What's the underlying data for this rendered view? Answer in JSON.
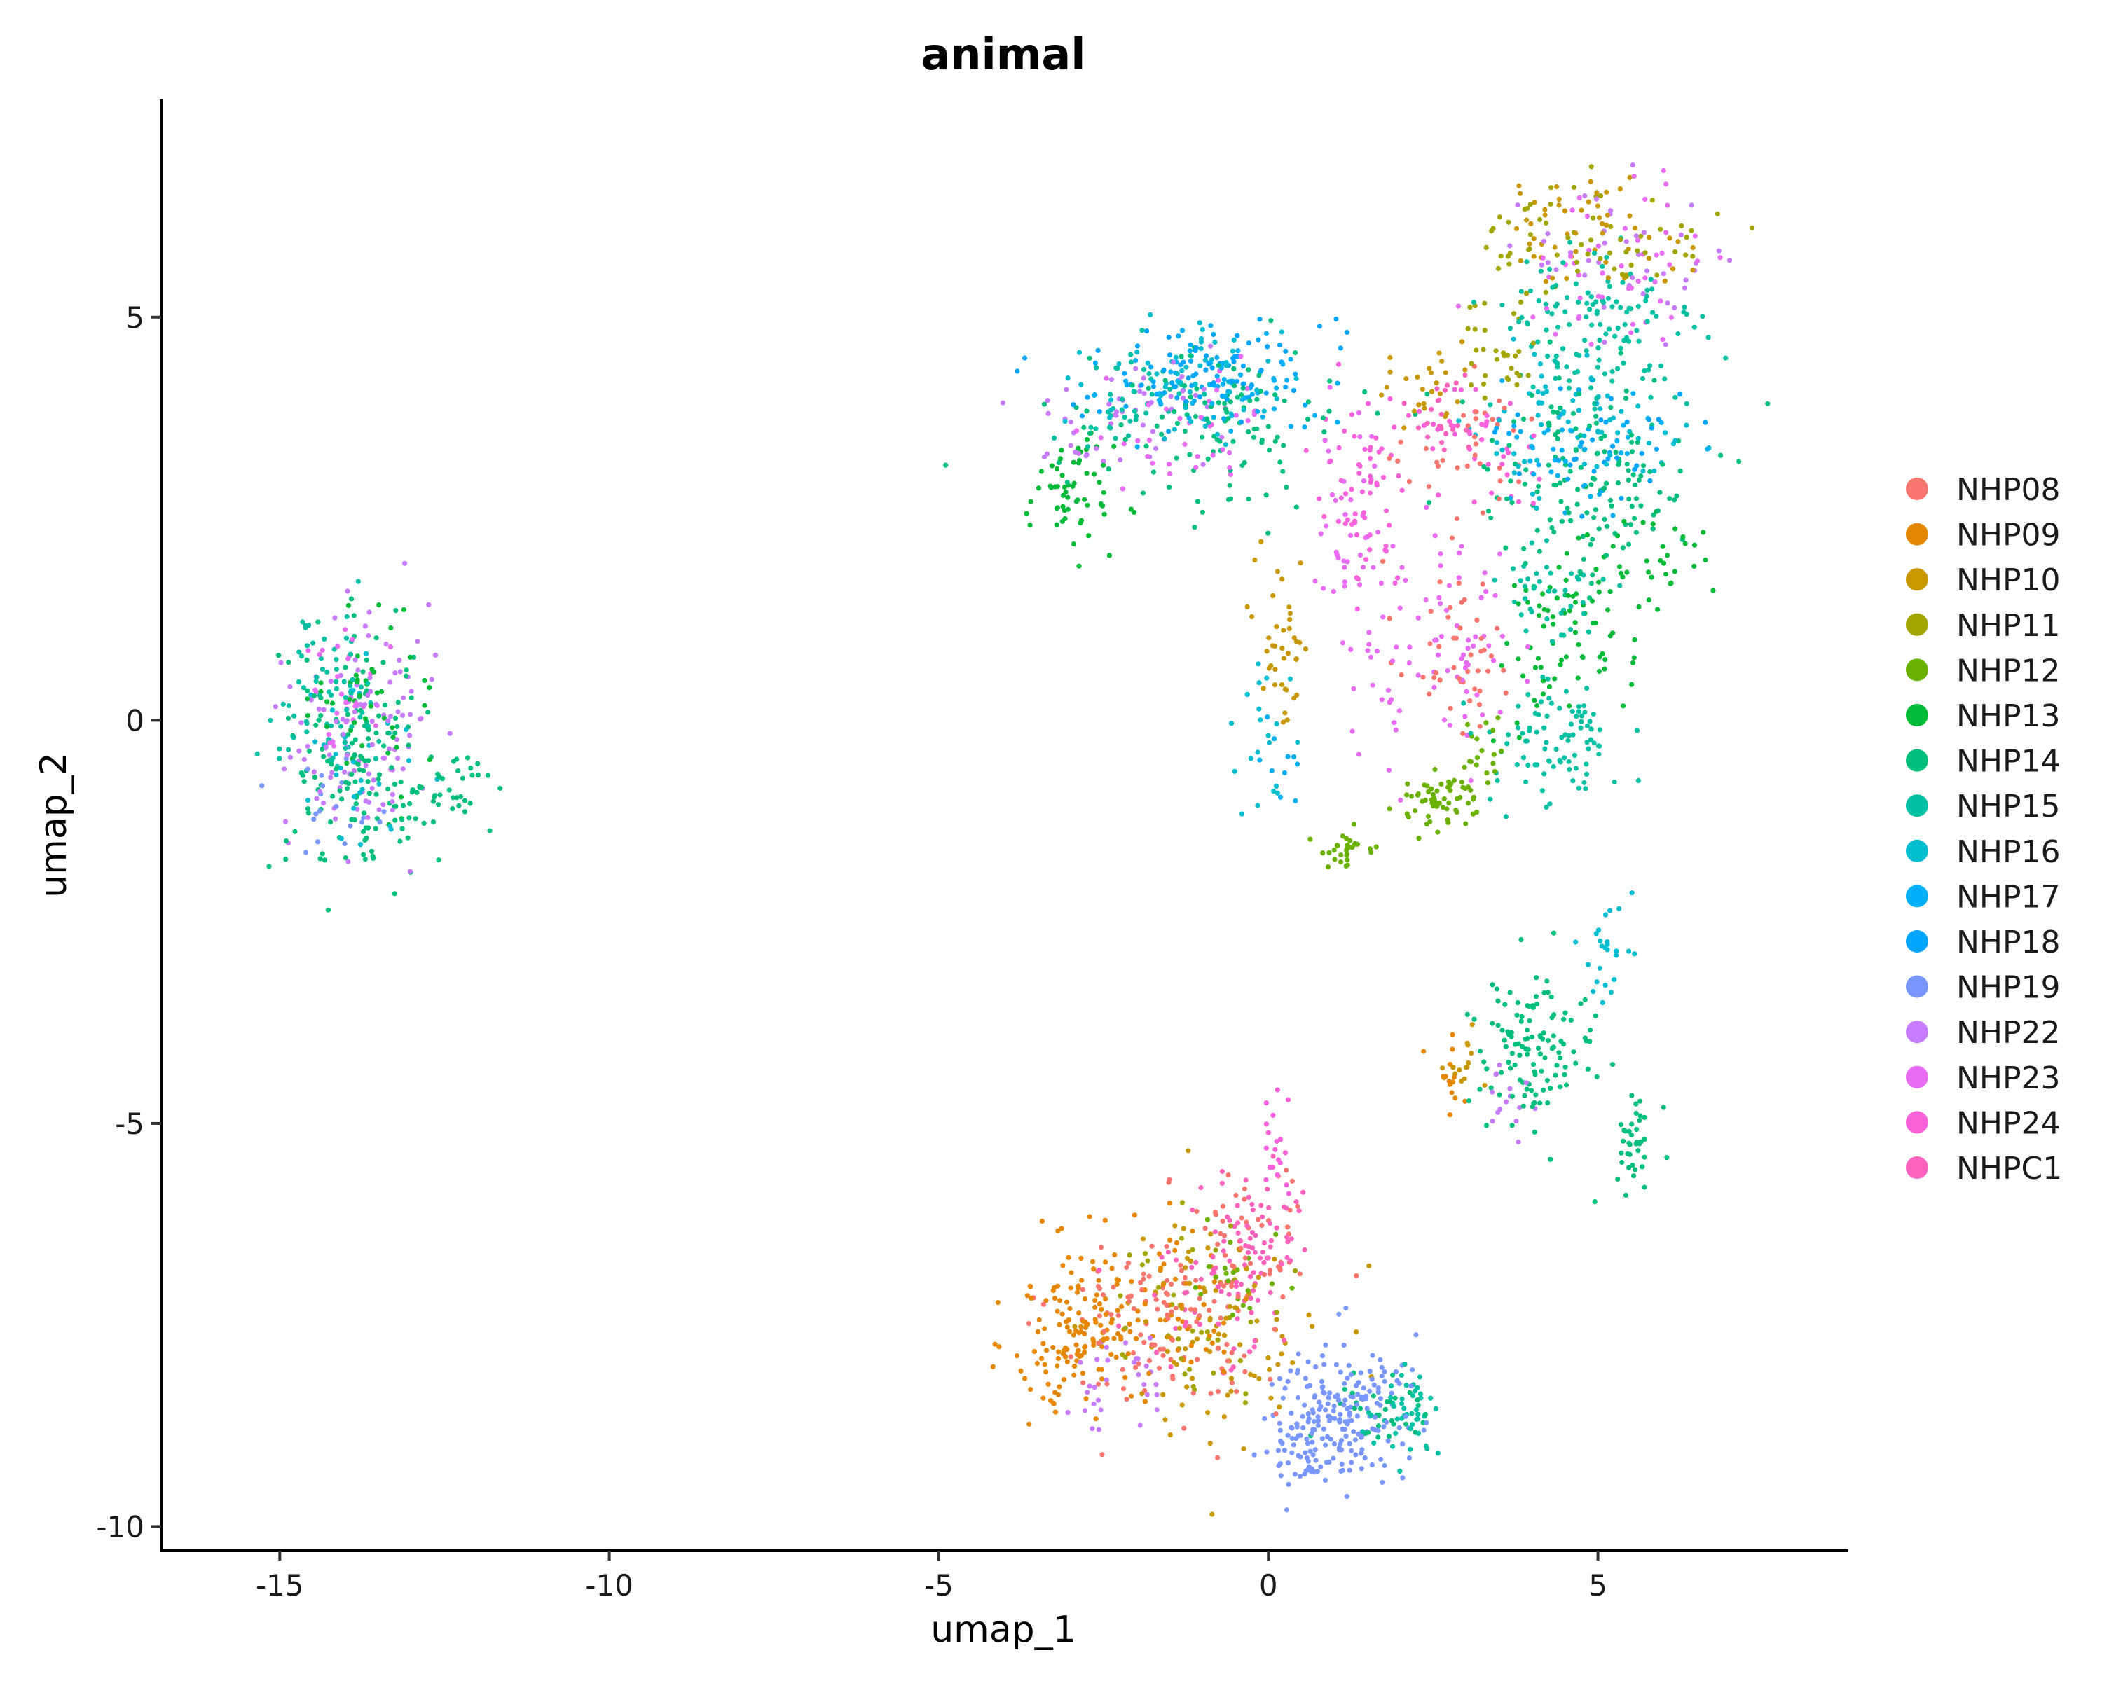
{
  "chart_data": {
    "type": "scatter",
    "title": "animal",
    "xlabel": "umap_1",
    "ylabel": "umap_2",
    "xlim": [
      -16.8,
      8.8
    ],
    "ylim": [
      -10.3,
      7.7
    ],
    "xticks": [
      -15,
      -10,
      -5,
      0,
      5
    ],
    "yticks": [
      -10,
      -5,
      0,
      5
    ],
    "xtick_labels": [
      "-15",
      "-10",
      "-5",
      "0",
      "5"
    ],
    "ytick_labels": [
      "-10",
      "-5",
      "0",
      "5"
    ],
    "grid": false,
    "legend_position": "right",
    "series": [
      {
        "name": "NHP08",
        "color": "#F8766D",
        "regions": [
          [
            2.8,
            0.9,
            0.8,
            1.0,
            45
          ],
          [
            -1.5,
            -7.4,
            1.6,
            1.2,
            120
          ],
          [
            -0.3,
            -6.3,
            0.8,
            1.0,
            40
          ],
          [
            3.2,
            3.2,
            1.0,
            0.8,
            35
          ]
        ]
      },
      {
        "name": "NHP09",
        "color": "#E58700",
        "regions": [
          [
            -2.9,
            -7.6,
            0.9,
            0.9,
            140
          ],
          [
            -1.5,
            -7.2,
            1.2,
            1.0,
            60
          ],
          [
            2.8,
            -4.4,
            0.3,
            0.5,
            15
          ]
        ]
      },
      {
        "name": "NHP10",
        "color": "#C99800",
        "regions": [
          [
            0.2,
            1.0,
            0.4,
            1.0,
            40
          ],
          [
            -0.7,
            -7.5,
            1.4,
            1.3,
            90
          ],
          [
            4.8,
            6.1,
            1.4,
            0.6,
            55
          ],
          [
            2.4,
            4.0,
            0.7,
            0.5,
            25
          ],
          [
            2.9,
            -4.2,
            0.3,
            0.5,
            15
          ]
        ]
      },
      {
        "name": "NHP11",
        "color": "#A3A500",
        "regions": [
          [
            5.0,
            6.0,
            1.5,
            0.7,
            60
          ],
          [
            3.5,
            4.6,
            0.7,
            0.6,
            30
          ],
          [
            -1.2,
            -7.4,
            1.3,
            1.0,
            40
          ]
        ]
      },
      {
        "name": "NHP12",
        "color": "#6BB100",
        "regions": [
          [
            2.6,
            -1.0,
            0.6,
            0.3,
            60
          ],
          [
            1.2,
            -1.6,
            0.5,
            0.2,
            30
          ],
          [
            3.3,
            -0.4,
            0.3,
            0.5,
            20
          ],
          [
            -0.5,
            -7.0,
            0.6,
            0.6,
            20
          ]
        ]
      },
      {
        "name": "NHP13",
        "color": "#00BA38",
        "regions": [
          [
            -3.0,
            2.8,
            0.6,
            0.6,
            60
          ],
          [
            4.5,
            1.0,
            0.9,
            1.0,
            70
          ],
          [
            -13.6,
            0.2,
            0.8,
            1.0,
            45
          ],
          [
            5.6,
            2.0,
            1.0,
            0.8,
            40
          ]
        ]
      },
      {
        "name": "NHP14",
        "color": "#00BF7D",
        "regions": [
          [
            -13.8,
            -0.5,
            1.0,
            1.4,
            140
          ],
          [
            -12.4,
            -0.9,
            0.7,
            0.5,
            40
          ],
          [
            4.0,
            -4.1,
            0.9,
            0.8,
            120
          ],
          [
            5.6,
            -5.2,
            0.3,
            0.5,
            40
          ],
          [
            -0.8,
            3.6,
            1.8,
            0.9,
            110
          ],
          [
            4.8,
            3.0,
            1.6,
            1.2,
            150
          ],
          [
            1.7,
            -8.6,
            0.6,
            0.5,
            30
          ]
        ]
      },
      {
        "name": "NHP15",
        "color": "#00C1A3",
        "regions": [
          [
            5.0,
            4.8,
            1.5,
            1.0,
            130
          ],
          [
            4.3,
            -0.3,
            0.9,
            0.7,
            90
          ],
          [
            -14.3,
            0.3,
            0.9,
            1.0,
            70
          ],
          [
            2.1,
            -8.6,
            0.4,
            0.4,
            45
          ],
          [
            4.3,
            1.6,
            0.8,
            0.6,
            40
          ],
          [
            -2.2,
            3.9,
            1.0,
            0.6,
            40
          ]
        ]
      },
      {
        "name": "NHP16",
        "color": "#00BDD0",
        "regions": [
          [
            -1.0,
            4.2,
            1.5,
            0.7,
            60
          ],
          [
            4.8,
            3.6,
            1.5,
            0.8,
            70
          ],
          [
            0.0,
            -0.1,
            0.4,
            0.9,
            20
          ],
          [
            5.1,
            -2.9,
            0.4,
            0.5,
            25
          ],
          [
            -14.0,
            -0.5,
            0.8,
            1.0,
            30
          ]
        ]
      },
      {
        "name": "NHP17",
        "color": "#00B0F6",
        "regions": [
          [
            -0.9,
            4.2,
            1.5,
            0.6,
            70
          ],
          [
            4.8,
            3.5,
            1.3,
            0.7,
            40
          ],
          [
            0.3,
            -0.5,
            0.3,
            0.5,
            10
          ]
        ]
      },
      {
        "name": "NHP18",
        "color": "#00A5FF",
        "regions": [
          [
            -0.9,
            4.3,
            1.6,
            0.6,
            80
          ],
          [
            4.9,
            3.4,
            1.3,
            0.7,
            40
          ]
        ]
      },
      {
        "name": "NHP19",
        "color": "#7997FF",
        "regions": [
          [
            1.1,
            -8.5,
            0.9,
            0.8,
            180
          ],
          [
            0.6,
            -9.1,
            0.7,
            0.4,
            50
          ],
          [
            -14.2,
            -1.0,
            0.7,
            0.7,
            20
          ]
        ]
      },
      {
        "name": "NHP22",
        "color": "#C77CFF",
        "regions": [
          [
            -13.8,
            -0.2,
            1.0,
            1.3,
            110
          ],
          [
            -2.2,
            3.8,
            1.2,
            0.7,
            50
          ],
          [
            5.3,
            5.7,
            1.4,
            0.9,
            40
          ],
          [
            -2.3,
            -8.2,
            0.8,
            0.6,
            30
          ],
          [
            3.7,
            -4.7,
            0.5,
            0.4,
            15
          ]
        ]
      },
      {
        "name": "NHP23",
        "color": "#E76BF3",
        "regions": [
          [
            2.5,
            1.0,
            1.1,
            1.3,
            80
          ],
          [
            1.3,
            2.4,
            0.5,
            1.4,
            40
          ],
          [
            5.3,
            5.6,
            1.5,
            0.9,
            50
          ],
          [
            -1.2,
            3.5,
            1.3,
            0.7,
            40
          ],
          [
            -14.0,
            0.4,
            0.7,
            0.8,
            30
          ]
        ]
      },
      {
        "name": "NHP24",
        "color": "#FA62DB",
        "regions": [
          [
            1.5,
            2.8,
            0.6,
            1.2,
            60
          ],
          [
            3.3,
            3.5,
            1.0,
            0.6,
            40
          ],
          [
            0.1,
            -5.3,
            0.3,
            0.5,
            20
          ]
        ]
      },
      {
        "name": "NHPC1",
        "color": "#FF62BC",
        "regions": [
          [
            -0.2,
            -6.4,
            0.6,
            0.8,
            70
          ],
          [
            -1.0,
            -7.2,
            1.0,
            0.8,
            40
          ],
          [
            2.6,
            3.8,
            0.6,
            0.5,
            25
          ]
        ]
      }
    ]
  }
}
